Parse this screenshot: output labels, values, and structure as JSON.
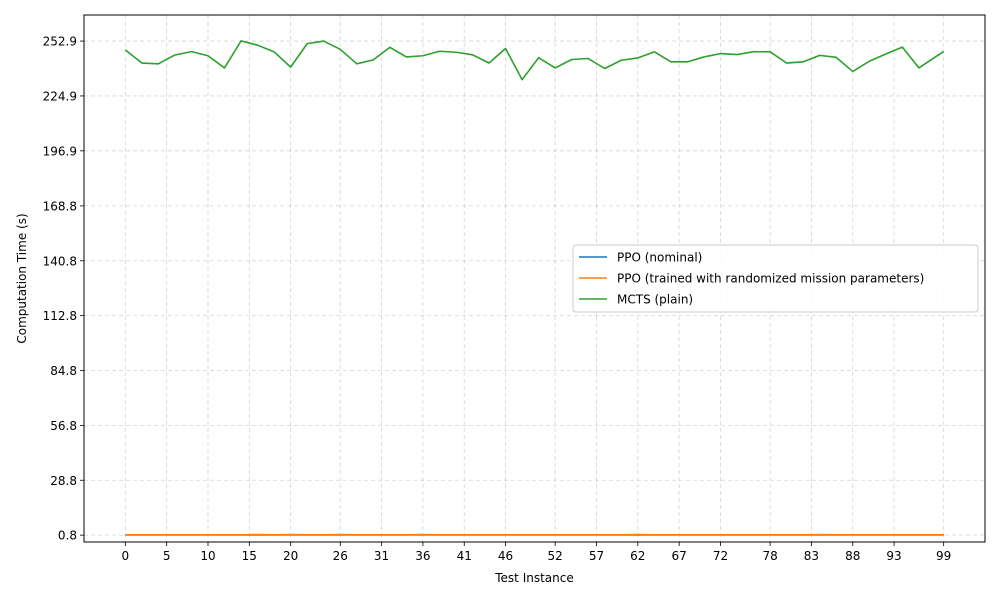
{
  "chart_data": {
    "type": "line",
    "xlabel": "Test Instance",
    "ylabel": "Computation Time (s)",
    "xlim": [
      -5,
      104
    ],
    "ylim": [
      -2.7,
      266.2
    ],
    "x_ticks": [
      0,
      5,
      10,
      15,
      20,
      26,
      31,
      36,
      41,
      46,
      52,
      57,
      62,
      67,
      72,
      78,
      83,
      88,
      93,
      99
    ],
    "y_ticks": [
      0.8,
      28.8,
      56.8,
      84.8,
      112.8,
      140.8,
      168.8,
      196.9,
      224.9,
      252.9
    ],
    "y_tick_labels": [
      "0.8",
      "28.8",
      "56.8",
      "84.8",
      "112.8",
      "140.8",
      "168.8",
      "196.9",
      "224.9",
      "252.9"
    ],
    "grid": true,
    "legend_position": "center-right",
    "series": [
      {
        "name": "PPO (nominal)",
        "color": "#1f77b4",
        "x": [
          0,
          2,
          4,
          6,
          8,
          10,
          12,
          14,
          16,
          18,
          20,
          22,
          24,
          26,
          28,
          30,
          32,
          34,
          36,
          38,
          40,
          42,
          44,
          46,
          48,
          50,
          52,
          54,
          56,
          58,
          60,
          62,
          64,
          66,
          68,
          70,
          72,
          74,
          76,
          78,
          80,
          82,
          84,
          86,
          88,
          90,
          92,
          94,
          96,
          99
        ],
        "y": [
          0.9,
          0.9,
          0.9,
          0.9,
          0.9,
          0.9,
          0.9,
          0.9,
          0.9,
          0.9,
          0.9,
          0.9,
          0.9,
          0.9,
          0.9,
          0.9,
          0.9,
          0.9,
          0.9,
          0.9,
          0.9,
          0.9,
          0.9,
          0.9,
          0.9,
          0.9,
          0.9,
          0.9,
          0.9,
          0.9,
          0.9,
          0.9,
          0.9,
          0.9,
          0.9,
          0.9,
          0.9,
          0.9,
          0.9,
          0.9,
          0.9,
          0.9,
          0.9,
          0.9,
          0.9,
          0.9,
          0.9,
          0.9,
          0.9,
          0.9
        ]
      },
      {
        "name": "PPO (trained with randomized mission parameters)",
        "color": "#ff7f0e",
        "x": [
          0,
          2,
          4,
          6,
          8,
          10,
          12,
          14,
          16,
          18,
          20,
          22,
          24,
          26,
          28,
          30,
          32,
          34,
          36,
          38,
          40,
          42,
          44,
          46,
          48,
          50,
          52,
          54,
          56,
          58,
          60,
          62,
          64,
          66,
          68,
          70,
          72,
          74,
          76,
          78,
          80,
          82,
          84,
          86,
          88,
          90,
          92,
          94,
          96,
          99
        ],
        "y": [
          1.0,
          1.0,
          1.0,
          1.0,
          1.0,
          1.0,
          1.0,
          1.0,
          1.1,
          1.0,
          1.1,
          1.0,
          1.0,
          1.1,
          1.0,
          1.0,
          1.0,
          1.0,
          1.1,
          1.0,
          1.0,
          1.0,
          1.0,
          1.0,
          1.0,
          1.0,
          1.0,
          1.0,
          1.0,
          1.0,
          1.0,
          1.1,
          1.0,
          1.0,
          1.0,
          1.0,
          1.0,
          1.0,
          1.0,
          1.0,
          1.0,
          1.0,
          1.1,
          1.0,
          1.0,
          1.0,
          1.0,
          1.0,
          1.0,
          1.0
        ]
      },
      {
        "name": "MCTS (plain)",
        "color": "#2ca02c",
        "x": [
          0,
          2,
          4,
          6,
          8,
          10,
          12,
          14,
          16,
          18,
          20,
          22,
          24,
          26,
          28,
          30,
          32,
          34,
          36,
          38,
          40,
          42,
          44,
          46,
          48,
          50,
          52,
          54,
          56,
          58,
          60,
          62,
          64,
          66,
          68,
          70,
          72,
          74,
          76,
          78,
          80,
          82,
          84,
          86,
          88,
          90,
          92,
          94,
          96,
          99
        ],
        "y": [
          248.4,
          241.7,
          241.3,
          245.8,
          247.5,
          245.4,
          239.2,
          253.0,
          250.8,
          247.4,
          239.6,
          251.6,
          252.9,
          248.7,
          241.3,
          243.3,
          249.7,
          244.8,
          245.4,
          247.7,
          247.2,
          245.9,
          241.7,
          249.1,
          233.2,
          244.4,
          239.2,
          243.5,
          244.0,
          238.9,
          243.1,
          244.3,
          247.4,
          242.3,
          242.3,
          244.8,
          246.5,
          246.0,
          247.5,
          247.4,
          241.7,
          242.3,
          245.6,
          244.6,
          237.4,
          242.6,
          246.3,
          249.8,
          239.2,
          247.6
        ]
      }
    ]
  }
}
